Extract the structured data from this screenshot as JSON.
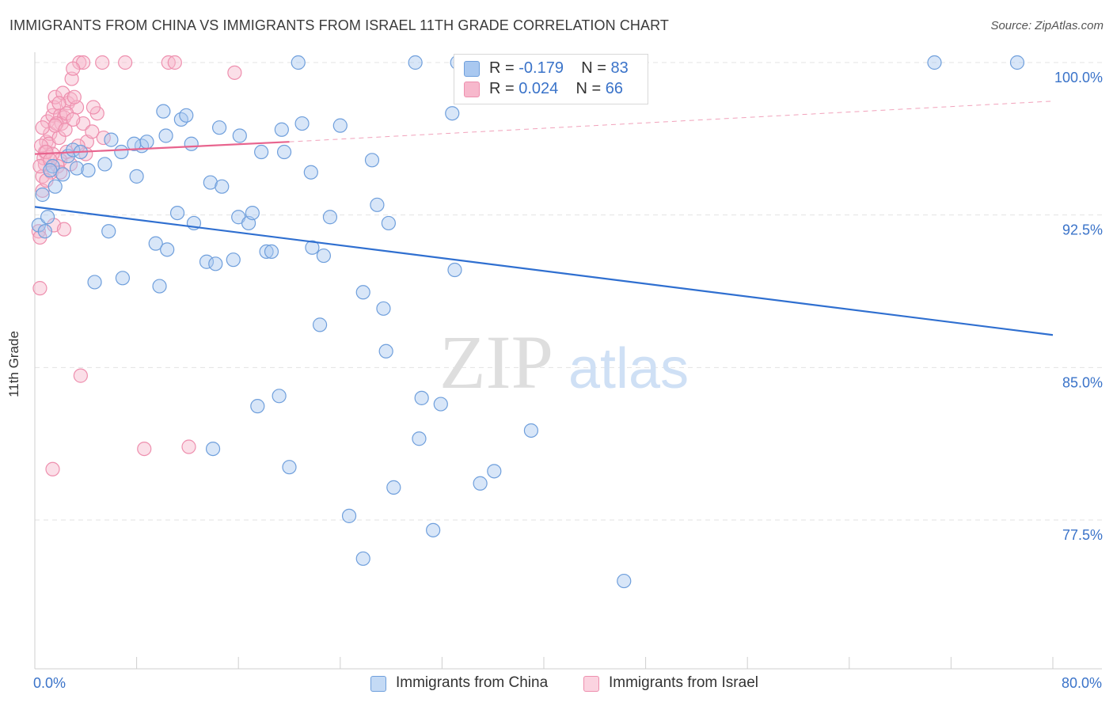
{
  "header": {
    "title": "IMMIGRANTS FROM CHINA VS IMMIGRANTS FROM ISRAEL 11TH GRADE CORRELATION CHART",
    "source": "Source: ZipAtlas.com"
  },
  "watermark": {
    "zip": "ZIP",
    "atlas": "atlas"
  },
  "legend_top": {
    "china": {
      "r_label": "R =",
      "r_value": "-0.179",
      "n_label": "N =",
      "n_value": "83"
    },
    "israel": {
      "r_label": "R =",
      "r_value": "0.024",
      "n_label": "N =",
      "n_value": "66"
    }
  },
  "colors": {
    "china_fill": "#a9c8f0",
    "china_stroke": "#6f9fdc",
    "china_line": "#2f6fd0",
    "israel_fill": "#f7b8cc",
    "israel_stroke": "#ee8fae",
    "israel_line": "#e8648e",
    "tick_label": "#3a73c9",
    "grid": "#e3e3e3"
  },
  "chart_data": {
    "type": "scatter",
    "title": "IMMIGRANTS FROM CHINA VS IMMIGRANTS FROM ISRAEL 11TH GRADE CORRELATION CHART",
    "xlabel": "",
    "ylabel": "11th Grade",
    "xlim": [
      0,
      80
    ],
    "ylim": [
      72.0,
      100.6
    ],
    "x_tick_labels": [
      "0.0%",
      "80.0%"
    ],
    "y_ticks": [
      {
        "value": 100.0,
        "label": "100.0%"
      },
      {
        "value": 92.5,
        "label": "92.5%"
      },
      {
        "value": 85.0,
        "label": "85.0%"
      },
      {
        "value": 77.5,
        "label": "77.5%"
      }
    ],
    "grid": "horizontal dashed",
    "legend": "bottom-center",
    "series": [
      {
        "name": "Immigrants from China",
        "trend": {
          "x": [
            0,
            80
          ],
          "y": [
            92.9,
            86.6
          ],
          "dashed_extension": false
        },
        "points": [
          [
            0.3,
            92.0
          ],
          [
            0.6,
            93.5
          ],
          [
            1.0,
            92.4
          ],
          [
            1.6,
            93.9
          ],
          [
            1.4,
            94.9
          ],
          [
            2.2,
            94.5
          ],
          [
            2.6,
            95.4
          ],
          [
            3.3,
            94.8
          ],
          [
            3.0,
            95.7
          ],
          [
            5.5,
            95.0
          ],
          [
            6.8,
            95.6
          ],
          [
            8.0,
            94.4
          ],
          [
            8.4,
            95.9
          ],
          [
            10.3,
            96.4
          ],
          [
            10.1,
            97.6
          ],
          [
            11.5,
            97.2
          ],
          [
            12.3,
            96.0
          ],
          [
            14.5,
            96.8
          ],
          [
            16.1,
            96.4
          ],
          [
            17.8,
            95.6
          ],
          [
            11.2,
            92.6
          ],
          [
            12.5,
            92.1
          ],
          [
            13.5,
            90.2
          ],
          [
            14.2,
            90.1
          ],
          [
            16.0,
            92.4
          ],
          [
            16.8,
            92.1
          ],
          [
            17.1,
            92.6
          ],
          [
            18.2,
            90.7
          ],
          [
            18.6,
            90.7
          ],
          [
            15.6,
            90.3
          ],
          [
            9.5,
            91.1
          ],
          [
            10.4,
            90.8
          ],
          [
            5.8,
            91.7
          ],
          [
            4.7,
            89.2
          ],
          [
            6.9,
            89.4
          ],
          [
            9.8,
            89.0
          ],
          [
            13.8,
            94.1
          ],
          [
            14.7,
            93.9
          ],
          [
            19.6,
            95.6
          ],
          [
            21.7,
            94.6
          ],
          [
            21.8,
            90.9
          ],
          [
            22.7,
            90.5
          ],
          [
            23.2,
            92.4
          ],
          [
            22.4,
            87.1
          ],
          [
            25.8,
            88.7
          ],
          [
            26.5,
            95.2
          ],
          [
            26.9,
            93.0
          ],
          [
            27.8,
            92.1
          ],
          [
            27.4,
            87.9
          ],
          [
            27.6,
            85.8
          ],
          [
            33.0,
            89.8
          ],
          [
            19.4,
            96.7
          ],
          [
            21.0,
            97.0
          ],
          [
            24.0,
            96.9
          ],
          [
            32.8,
            97.5
          ],
          [
            20.7,
            100.0
          ],
          [
            29.9,
            100.0
          ],
          [
            33.2,
            100.0
          ],
          [
            70.7,
            100.0
          ],
          [
            77.2,
            100.0
          ],
          [
            6.0,
            96.2
          ],
          [
            7.8,
            96.0
          ],
          [
            3.6,
            95.6
          ],
          [
            1.2,
            94.7
          ],
          [
            17.5,
            83.1
          ],
          [
            19.2,
            83.6
          ],
          [
            30.4,
            83.5
          ],
          [
            31.9,
            83.2
          ],
          [
            39.0,
            81.9
          ],
          [
            30.2,
            81.5
          ],
          [
            14.0,
            81.0
          ],
          [
            20.0,
            80.1
          ],
          [
            36.1,
            79.9
          ],
          [
            35.0,
            79.3
          ],
          [
            28.2,
            79.1
          ],
          [
            24.7,
            77.7
          ],
          [
            31.3,
            77.0
          ],
          [
            25.8,
            75.6
          ],
          [
            46.3,
            74.5
          ],
          [
            0.8,
            91.7
          ],
          [
            4.2,
            94.7
          ],
          [
            8.8,
            96.1
          ],
          [
            11.9,
            97.4
          ]
        ]
      },
      {
        "name": "Immigrants from Israel",
        "trend": {
          "x": [
            0,
            20
          ],
          "y": [
            95.5,
            96.1
          ],
          "dashed_extension": true,
          "extension_to": [
            80,
            98.1
          ]
        },
        "points": [
          [
            0.3,
            91.7
          ],
          [
            0.4,
            91.4
          ],
          [
            0.4,
            88.9
          ],
          [
            0.6,
            93.7
          ],
          [
            0.6,
            94.4
          ],
          [
            0.8,
            95.0
          ],
          [
            0.8,
            95.6
          ],
          [
            0.9,
            96.1
          ],
          [
            1.0,
            97.1
          ],
          [
            1.2,
            96.5
          ],
          [
            1.4,
            97.4
          ],
          [
            1.5,
            97.8
          ],
          [
            1.6,
            98.3
          ],
          [
            2.0,
            97.4
          ],
          [
            2.2,
            98.5
          ],
          [
            2.3,
            97.3
          ],
          [
            2.6,
            98.0
          ],
          [
            2.9,
            99.2
          ],
          [
            3.5,
            100.0
          ],
          [
            3.8,
            100.0
          ],
          [
            5.3,
            100.0
          ],
          [
            7.1,
            100.0
          ],
          [
            10.5,
            100.0
          ],
          [
            11.0,
            100.0
          ],
          [
            15.7,
            99.5
          ],
          [
            3.0,
            99.7
          ],
          [
            2.8,
            98.2
          ],
          [
            3.3,
            97.8
          ],
          [
            3.8,
            97.0
          ],
          [
            4.1,
            96.1
          ],
          [
            4.5,
            96.6
          ],
          [
            4.9,
            97.5
          ],
          [
            5.4,
            96.3
          ],
          [
            2.5,
            95.6
          ],
          [
            2.0,
            95.2
          ],
          [
            1.8,
            94.9
          ],
          [
            1.3,
            94.6
          ],
          [
            0.9,
            94.2
          ],
          [
            0.7,
            95.3
          ],
          [
            1.1,
            96.0
          ],
          [
            1.9,
            96.3
          ],
          [
            2.1,
            97.0
          ],
          [
            2.5,
            97.5
          ],
          [
            3.1,
            98.3
          ],
          [
            1.7,
            97.0
          ],
          [
            1.4,
            95.5
          ],
          [
            1.5,
            92.0
          ],
          [
            2.3,
            91.8
          ],
          [
            3.6,
            84.6
          ],
          [
            8.6,
            81.0
          ],
          [
            12.1,
            81.1
          ],
          [
            1.4,
            80.0
          ],
          [
            4.0,
            95.5
          ],
          [
            0.5,
            95.9
          ],
          [
            0.9,
            95.6
          ],
          [
            1.6,
            96.9
          ],
          [
            2.4,
            96.7
          ],
          [
            3.0,
            97.2
          ],
          [
            4.6,
            97.8
          ],
          [
            0.6,
            96.8
          ],
          [
            1.9,
            98.0
          ],
          [
            0.4,
            94.9
          ],
          [
            2.8,
            95.0
          ],
          [
            1.2,
            95.2
          ],
          [
            3.4,
            95.9
          ],
          [
            2.0,
            94.6
          ]
        ]
      }
    ]
  },
  "legend_bottom": {
    "china_label": "Immigrants from China",
    "israel_label": "Immigrants from Israel"
  }
}
